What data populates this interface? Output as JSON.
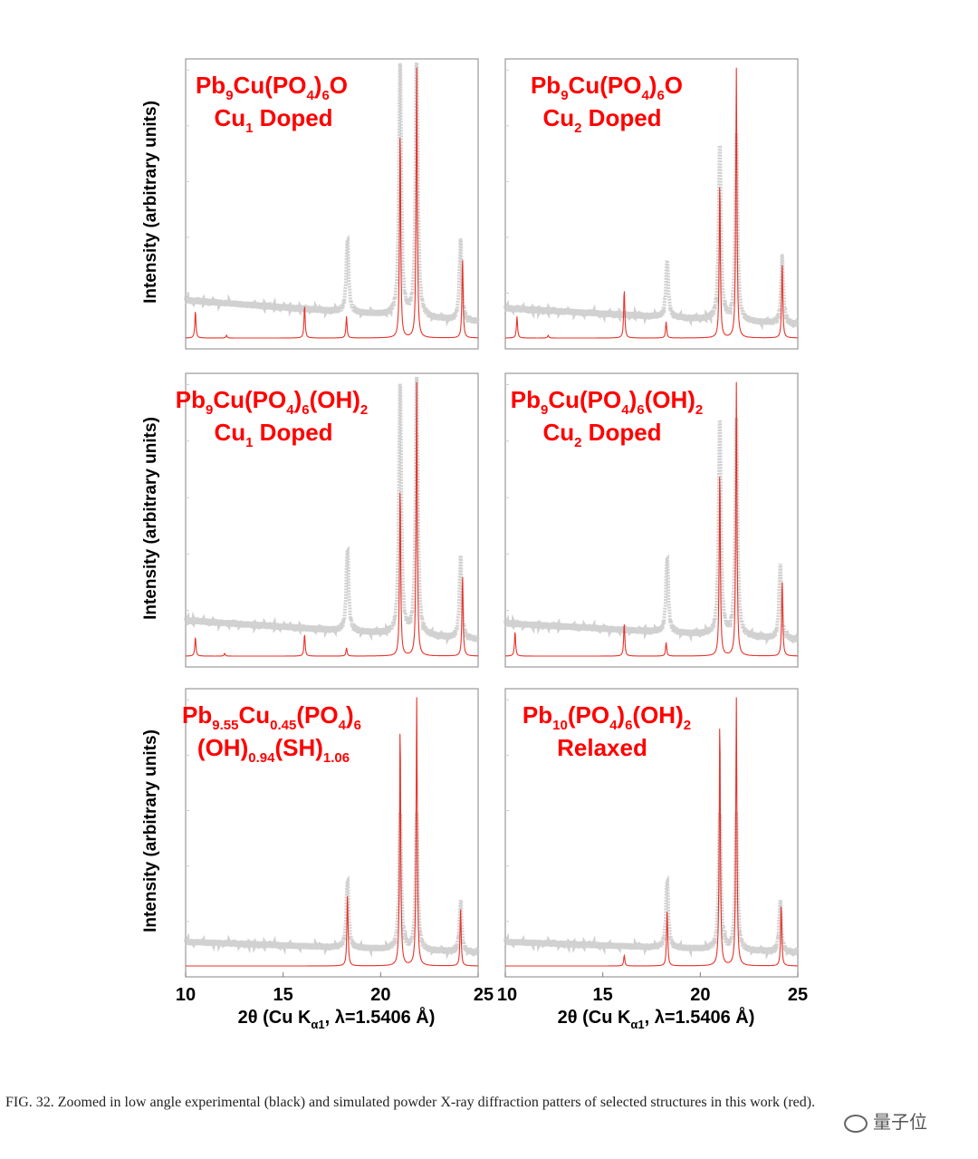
{
  "figure": {
    "caption": "FIG. 32. Zoomed in low angle experimental (black) and simulated powder X-ray diffraction patters of selected structures in this work (red).",
    "watermark": "量子位"
  },
  "style": {
    "experimental_color": "#c9c9c9",
    "simulated_color": "#e8332a",
    "label_color": "#ff0000",
    "frame_color": "#9a9a9a"
  },
  "axes": {
    "ylabel": "Intensity (arbitrary units)",
    "xlabel": "2θ (Cu Kα1, λ=1.5406 Å)",
    "xlim": [
      10,
      25
    ],
    "xticks": [
      10,
      15,
      20,
      25
    ]
  },
  "chart_data": [
    {
      "type": "line",
      "label_lines": [
        "Pb9Cu(PO4)6O",
        "Cu1 Doped"
      ],
      "series": [
        {
          "name": "experimental",
          "peaks": [
            [
              18.3,
              0.28
            ],
            [
              21.0,
              0.95
            ],
            [
              21.85,
              1.0
            ],
            [
              24.1,
              0.3
            ]
          ],
          "baseline": [
            0.14,
            0.06
          ]
        },
        {
          "name": "simulated",
          "peaks": [
            [
              10.5,
              0.1
            ],
            [
              12.1,
              0.01
            ],
            [
              16.1,
              0.12
            ],
            [
              18.25,
              0.08
            ],
            [
              21.0,
              0.77
            ],
            [
              21.85,
              1.0
            ],
            [
              24.2,
              0.3
            ]
          ]
        }
      ]
    },
    {
      "type": "line",
      "label_lines": [
        "Pb9Cu(PO4)6O",
        "Cu2 Doped"
      ],
      "series": [
        {
          "name": "experimental",
          "peaks": [
            [
              18.3,
              0.22
            ],
            [
              21.0,
              0.66
            ],
            [
              21.85,
              0.7
            ],
            [
              24.2,
              0.25
            ]
          ],
          "baseline": [
            0.11,
            0.05
          ]
        },
        {
          "name": "simulated",
          "peaks": [
            [
              10.6,
              0.08
            ],
            [
              12.2,
              0.01
            ],
            [
              16.1,
              0.18
            ],
            [
              18.25,
              0.06
            ],
            [
              21.0,
              0.58
            ],
            [
              21.85,
              1.0
            ],
            [
              24.2,
              0.28
            ]
          ]
        }
      ]
    },
    {
      "type": "line",
      "label_lines": [
        "Pb9Cu(PO4)6(OH)2",
        "Cu1 Doped"
      ],
      "series": [
        {
          "name": "experimental",
          "peaks": [
            [
              18.3,
              0.31
            ],
            [
              21.0,
              0.93
            ],
            [
              21.85,
              0.96
            ],
            [
              24.1,
              0.3
            ]
          ],
          "baseline": [
            0.13,
            0.06
          ]
        },
        {
          "name": "simulated",
          "peaks": [
            [
              10.5,
              0.07
            ],
            [
              12.0,
              0.01
            ],
            [
              16.1,
              0.08
            ],
            [
              18.25,
              0.03
            ],
            [
              21.0,
              0.62
            ],
            [
              21.85,
              1.0
            ],
            [
              24.2,
              0.3
            ]
          ]
        }
      ]
    },
    {
      "type": "line",
      "label_lines": [
        "Pb9Cu(PO4)6(OH)2",
        "Cu2 Doped"
      ],
      "series": [
        {
          "name": "experimental",
          "peaks": [
            [
              18.3,
              0.28
            ],
            [
              21.0,
              0.8
            ],
            [
              21.85,
              0.8
            ],
            [
              24.1,
              0.27
            ]
          ],
          "baseline": [
            0.12,
            0.06
          ]
        },
        {
          "name": "simulated",
          "peaks": [
            [
              10.5,
              0.09
            ],
            [
              16.1,
              0.12
            ],
            [
              18.25,
              0.05
            ],
            [
              21.0,
              0.68
            ],
            [
              21.85,
              1.0
            ],
            [
              24.2,
              0.28
            ]
          ]
        }
      ]
    },
    {
      "type": "line",
      "label_lines": [
        "Pb9.55Cu0.45(PO4)6",
        "(OH)0.94(SH)1.06"
      ],
      "series": [
        {
          "name": "experimental",
          "peaks": [
            [
              18.3,
              0.26
            ],
            [
              21.0,
              0.52
            ],
            [
              21.85,
              0.52
            ],
            [
              24.1,
              0.19
            ]
          ],
          "baseline": [
            0.09,
            0.05
          ]
        },
        {
          "name": "simulated",
          "peaks": [
            [
              18.3,
              0.27
            ],
            [
              21.0,
              0.9
            ],
            [
              21.85,
              1.0
            ],
            [
              24.1,
              0.21
            ]
          ]
        }
      ]
    },
    {
      "type": "line",
      "label_lines": [
        "Pb10(PO4)6(OH)2",
        "Relaxed"
      ],
      "series": [
        {
          "name": "experimental",
          "peaks": [
            [
              18.3,
              0.26
            ],
            [
              21.0,
              0.52
            ],
            [
              21.85,
              0.52
            ],
            [
              24.1,
              0.19
            ]
          ],
          "baseline": [
            0.09,
            0.05
          ]
        },
        {
          "name": "simulated",
          "peaks": [
            [
              16.1,
              0.04
            ],
            [
              18.3,
              0.21
            ],
            [
              21.0,
              0.92
            ],
            [
              21.85,
              1.0
            ],
            [
              24.15,
              0.23
            ]
          ]
        }
      ]
    }
  ]
}
